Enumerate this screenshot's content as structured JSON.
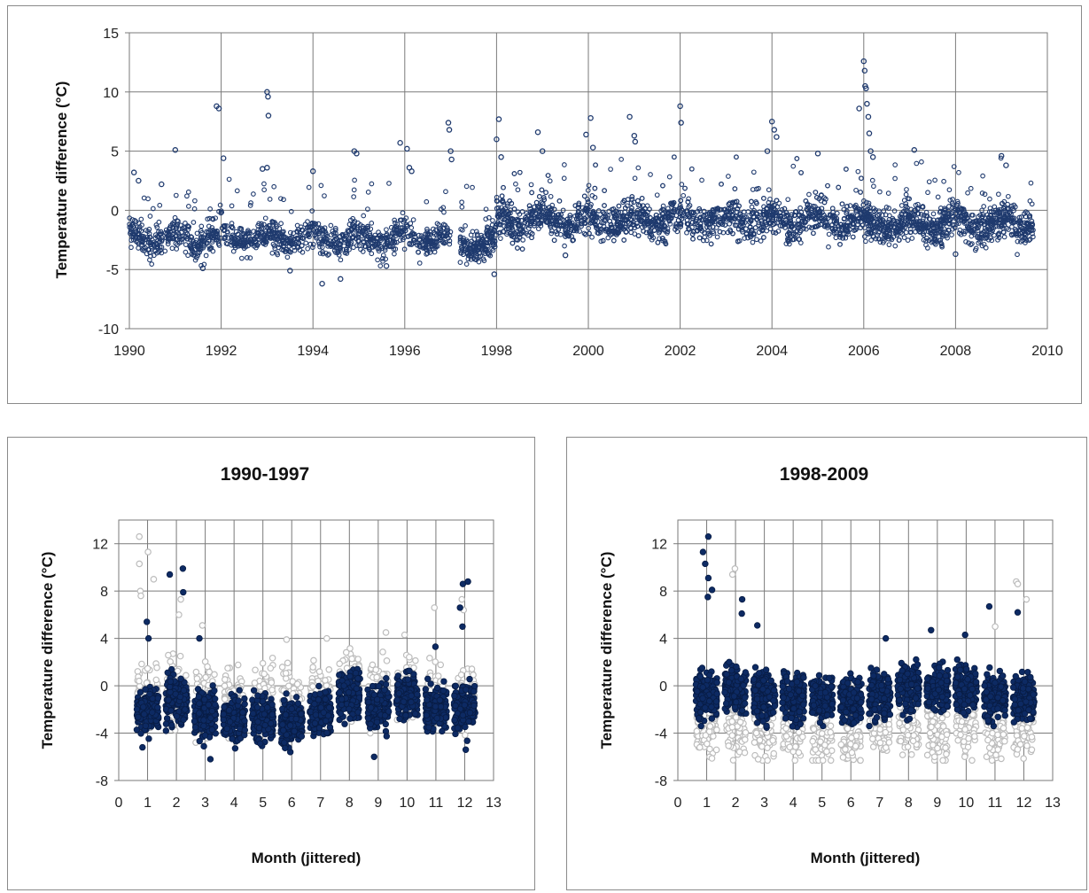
{
  "chart_data": [
    {
      "type": "scatter",
      "title": "",
      "xlabel": "",
      "ylabel": "Temperature difference (°C)",
      "xlim": [
        1990,
        2010
      ],
      "ylim": [
        -10,
        15
      ],
      "x_ticks": [
        "1990",
        "1992",
        "1994",
        "1996",
        "1998",
        "2000",
        "2002",
        "2004",
        "2006",
        "2008",
        "2010"
      ],
      "y_ticks": [
        "15",
        "10",
        "5",
        "0",
        "-5",
        "-10"
      ],
      "grid": true,
      "marker": "open-circle",
      "colors": {
        "marker": "#1f3a6e"
      },
      "segments": [
        {
          "x": [
            1990.0,
            1997.0
          ],
          "mean": -2.3,
          "spread": 0.9,
          "n": 1100
        },
        {
          "x": [
            1997.2,
            1998.0
          ],
          "mean": -2.7,
          "spread": 1.0,
          "n": 180
        },
        {
          "x": [
            1998.0,
            2006.0
          ],
          "mean": -0.8,
          "spread": 1.1,
          "n": 1900
        },
        {
          "x": [
            2006.0,
            2009.7
          ],
          "mean": -1.1,
          "spread": 1.1,
          "n": 800
        }
      ],
      "highlights": [
        {
          "x": 1990.1,
          "y": 3.2
        },
        {
          "x": 1990.2,
          "y": 2.5
        },
        {
          "x": 1990.7,
          "y": 2.2
        },
        {
          "x": 1991.0,
          "y": 5.1
        },
        {
          "x": 1991.9,
          "y": 8.8
        },
        {
          "x": 1991.95,
          "y": 8.6
        },
        {
          "x": 1992.05,
          "y": 4.4
        },
        {
          "x": 1993.0,
          "y": 10.0
        },
        {
          "x": 1993.02,
          "y": 9.6
        },
        {
          "x": 1993.03,
          "y": 8.0
        },
        {
          "x": 1992.9,
          "y": 3.5
        },
        {
          "x": 1993.0,
          "y": 3.6
        },
        {
          "x": 1994.0,
          "y": 3.3
        },
        {
          "x": 1994.9,
          "y": 5.0
        },
        {
          "x": 1994.95,
          "y": 4.8
        },
        {
          "x": 1995.9,
          "y": 5.7
        },
        {
          "x": 1996.05,
          "y": 5.2
        },
        {
          "x": 1996.1,
          "y": 3.6
        },
        {
          "x": 1996.15,
          "y": 3.3
        },
        {
          "x": 1996.95,
          "y": 7.4
        },
        {
          "x": 1996.97,
          "y": 6.8
        },
        {
          "x": 1997.0,
          "y": 5.0
        },
        {
          "x": 1997.02,
          "y": 4.3
        },
        {
          "x": 1998.05,
          "y": 7.7
        },
        {
          "x": 1998.0,
          "y": 6.0
        },
        {
          "x": 1998.1,
          "y": 4.5
        },
        {
          "x": 1998.9,
          "y": 6.6
        },
        {
          "x": 1999.0,
          "y": 5.0
        },
        {
          "x": 1999.95,
          "y": 6.4
        },
        {
          "x": 2000.05,
          "y": 7.8
        },
        {
          "x": 2000.1,
          "y": 5.3
        },
        {
          "x": 2000.9,
          "y": 7.9
        },
        {
          "x": 2001.0,
          "y": 6.3
        },
        {
          "x": 2001.02,
          "y": 5.8
        },
        {
          "x": 2002.0,
          "y": 8.8
        },
        {
          "x": 2002.02,
          "y": 7.4
        },
        {
          "x": 2003.9,
          "y": 5.0
        },
        {
          "x": 2004.0,
          "y": 7.5
        },
        {
          "x": 2004.05,
          "y": 6.8
        },
        {
          "x": 2004.1,
          "y": 6.2
        },
        {
          "x": 2005.0,
          "y": 4.8
        },
        {
          "x": 2005.9,
          "y": 8.6
        },
        {
          "x": 2006.0,
          "y": 12.6
        },
        {
          "x": 2006.02,
          "y": 11.8
        },
        {
          "x": 2006.03,
          "y": 10.5
        },
        {
          "x": 2006.05,
          "y": 10.3
        },
        {
          "x": 2006.07,
          "y": 9.0
        },
        {
          "x": 2006.1,
          "y": 7.9
        },
        {
          "x": 2006.12,
          "y": 6.5
        },
        {
          "x": 2006.15,
          "y": 5.0
        },
        {
          "x": 2006.2,
          "y": 4.5
        },
        {
          "x": 2007.1,
          "y": 5.1
        },
        {
          "x": 2009.0,
          "y": 4.6
        },
        {
          "x": 2009.1,
          "y": 3.8
        },
        {
          "x": 1994.2,
          "y": -6.2
        },
        {
          "x": 1994.6,
          "y": -5.8
        },
        {
          "x": 1997.95,
          "y": -5.4
        },
        {
          "x": 1991.6,
          "y": -4.9
        },
        {
          "x": 1993.5,
          "y": -5.1
        },
        {
          "x": 1995.6,
          "y": -4.7
        },
        {
          "x": 1999.5,
          "y": -3.8
        },
        {
          "x": 2008.0,
          "y": -3.7
        }
      ]
    },
    {
      "type": "scatter",
      "title": "1990-1997",
      "xlabel": "Month (jittered)",
      "ylabel": "Temperature difference (°C)",
      "xlim": [
        0,
        13
      ],
      "ylim": [
        -8,
        14
      ],
      "x_ticks": [
        "0",
        "1",
        "2",
        "3",
        "4",
        "5",
        "6",
        "7",
        "8",
        "9",
        "10",
        "11",
        "12",
        "13"
      ],
      "y_ticks": [
        "12",
        "8",
        "4",
        "0",
        "-4",
        "-8"
      ],
      "grid": true,
      "series": [
        {
          "name": "",
          "role": "background",
          "color": "#bdbdbd",
          "style": "open"
        },
        {
          "name": "",
          "role": "highlight",
          "color": "#0d2a63",
          "style": "filled"
        }
      ],
      "highlight_month_means": [
        -1.9,
        -1.2,
        -2.4,
        -2.7,
        -2.8,
        -3.1,
        -2.2,
        -0.8,
        -1.8,
        -0.7,
        -1.9,
        -1.6
      ],
      "background_month_means": [
        -0.9,
        -0.5,
        -1.1,
        -1.0,
        -0.9,
        -1.2,
        -0.8,
        -0.2,
        -0.4,
        -0.2,
        -0.8,
        -1.0
      ],
      "highlight_extremes": [
        {
          "month": 1,
          "y": 5.4
        },
        {
          "month": 1,
          "y": 4.0
        },
        {
          "month": 2,
          "y": 9.9
        },
        {
          "month": 2,
          "y": 9.4
        },
        {
          "month": 2,
          "y": 7.9
        },
        {
          "month": 3,
          "y": 4.0
        },
        {
          "month": 3,
          "y": -6.2
        },
        {
          "month": 9,
          "y": -6.0
        },
        {
          "month": 12,
          "y": 8.8
        },
        {
          "month": 12,
          "y": 8.6
        },
        {
          "month": 12,
          "y": 6.6
        },
        {
          "month": 12,
          "y": 5.0
        },
        {
          "month": 12,
          "y": -5.4
        },
        {
          "month": 11,
          "y": 3.3
        },
        {
          "month": 1,
          "y": -5.2
        }
      ],
      "background_extremes": [
        {
          "month": 1,
          "y": 12.6
        },
        {
          "month": 1,
          "y": 11.3
        },
        {
          "month": 1,
          "y": 10.3
        },
        {
          "month": 1,
          "y": 9.0
        },
        {
          "month": 1,
          "y": 8.0
        },
        {
          "month": 1,
          "y": 7.6
        },
        {
          "month": 2,
          "y": 7.3
        },
        {
          "month": 2,
          "y": 6.0
        },
        {
          "month": 3,
          "y": 5.1
        },
        {
          "month": 11,
          "y": 6.6
        },
        {
          "month": 12,
          "y": 7.3
        },
        {
          "month": 12,
          "y": 6.4
        },
        {
          "month": 7,
          "y": 4.0
        },
        {
          "month": 9,
          "y": 4.5
        },
        {
          "month": 10,
          "y": 4.3
        },
        {
          "month": 6,
          "y": 3.9
        }
      ]
    },
    {
      "type": "scatter",
      "title": "1998-2009",
      "xlabel": "Month (jittered)",
      "ylabel": "Temperature difference (°C)",
      "xlim": [
        0,
        13
      ],
      "ylim": [
        -8,
        14
      ],
      "x_ticks": [
        "0",
        "1",
        "2",
        "3",
        "4",
        "5",
        "6",
        "7",
        "8",
        "9",
        "10",
        "11",
        "12",
        "13"
      ],
      "y_ticks": [
        "12",
        "8",
        "4",
        "0",
        "-4",
        "-8"
      ],
      "grid": true,
      "series": [
        {
          "name": "",
          "role": "background",
          "color": "#bdbdbd",
          "style": "open"
        },
        {
          "name": "",
          "role": "highlight",
          "color": "#0d2a63",
          "style": "filled"
        }
      ],
      "highlight_month_means": [
        -0.9,
        -0.3,
        -1.0,
        -0.9,
        -1.0,
        -1.2,
        -0.8,
        -0.2,
        -0.3,
        -0.2,
        -0.9,
        -1.0
      ],
      "background_month_means": [
        -3.6,
        -3.4,
        -3.6,
        -3.8,
        -3.9,
        -4.1,
        -3.8,
        -3.4,
        -3.6,
        -3.3,
        -3.6,
        -3.6
      ],
      "highlight_extremes": [
        {
          "month": 1,
          "y": 12.6
        },
        {
          "month": 1,
          "y": 11.3
        },
        {
          "month": 1,
          "y": 10.3
        },
        {
          "month": 1,
          "y": 9.1
        },
        {
          "month": 1,
          "y": 8.1
        },
        {
          "month": 1,
          "y": 7.5
        },
        {
          "month": 2,
          "y": 7.3
        },
        {
          "month": 2,
          "y": 6.1
        },
        {
          "month": 3,
          "y": 5.1
        },
        {
          "month": 11,
          "y": 6.7
        },
        {
          "month": 12,
          "y": 6.2
        },
        {
          "month": 9,
          "y": 4.7
        },
        {
          "month": 10,
          "y": 4.3
        },
        {
          "month": 7,
          "y": 4.0
        }
      ],
      "background_extremes": [
        {
          "month": 2,
          "y": 9.9
        },
        {
          "month": 2,
          "y": 9.4
        },
        {
          "month": 12,
          "y": 8.8
        },
        {
          "month": 12,
          "y": 8.6
        },
        {
          "month": 12,
          "y": 7.3
        },
        {
          "month": 11,
          "y": 5.0
        },
        {
          "month": 3,
          "y": -6.2
        },
        {
          "month": 9,
          "y": -6.0
        },
        {
          "month": 12,
          "y": -5.4
        },
        {
          "month": 1,
          "y": -5.2
        },
        {
          "month": 5,
          "y": -5.0
        },
        {
          "month": 6,
          "y": -5.1
        }
      ]
    }
  ]
}
